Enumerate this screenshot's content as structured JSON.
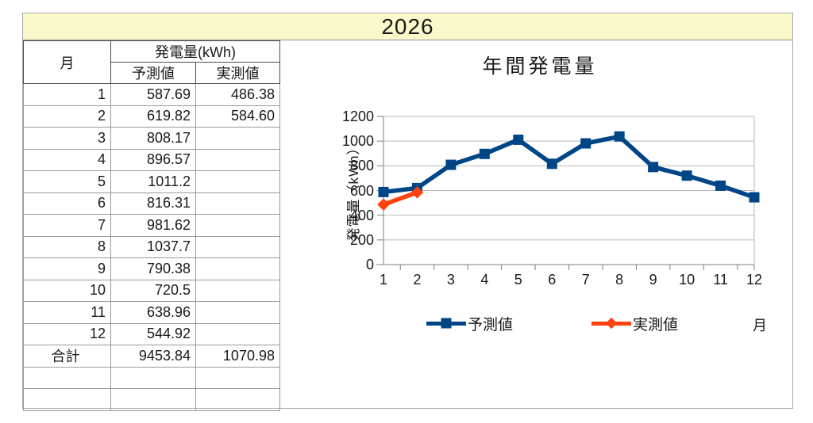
{
  "sheet": {
    "title": "2026"
  },
  "table": {
    "headers": {
      "month": "月",
      "group": "発電量(kWh)",
      "pred": "予測値",
      "actual": "実測値"
    },
    "rows": [
      {
        "month": "1",
        "pred": "587.69",
        "actual": "486.38"
      },
      {
        "month": "2",
        "pred": "619.82",
        "actual": "584.60"
      },
      {
        "month": "3",
        "pred": "808.17",
        "actual": ""
      },
      {
        "month": "4",
        "pred": "896.57",
        "actual": ""
      },
      {
        "month": "5",
        "pred": "1011.2",
        "actual": ""
      },
      {
        "month": "6",
        "pred": "816.31",
        "actual": ""
      },
      {
        "month": "7",
        "pred": "981.62",
        "actual": ""
      },
      {
        "month": "8",
        "pred": "1037.7",
        "actual": ""
      },
      {
        "month": "9",
        "pred": "790.38",
        "actual": ""
      },
      {
        "month": "10",
        "pred": "720.5",
        "actual": ""
      },
      {
        "month": "11",
        "pred": "638.96",
        "actual": ""
      },
      {
        "month": "12",
        "pred": "544.92",
        "actual": ""
      }
    ],
    "total": {
      "label": "合計",
      "pred": "9453.84",
      "actual": "1070.98"
    },
    "empty_row_count": 2
  },
  "chart_data": {
    "type": "line",
    "title": "年間発電量",
    "ylabel": "発電量（kWh）",
    "xlabel": "月",
    "x": [
      1,
      2,
      3,
      4,
      5,
      6,
      7,
      8,
      9,
      10,
      11,
      12
    ],
    "series": [
      {
        "name": "予測値",
        "color": "#004586",
        "marker": "square",
        "values": [
          587.69,
          619.82,
          808.17,
          896.57,
          1011.2,
          816.31,
          981.62,
          1037.7,
          790.38,
          720.5,
          638.96,
          544.92
        ]
      },
      {
        "name": "実測値",
        "color": "#FF420E",
        "marker": "diamond",
        "values": [
          486.38,
          584.6,
          null,
          null,
          null,
          null,
          null,
          null,
          null,
          null,
          null,
          null
        ]
      }
    ],
    "ylim": [
      0,
      1200
    ],
    "yticks": [
      0,
      200,
      400,
      600,
      800,
      1000,
      1200
    ],
    "grid": true,
    "legend_position": "bottom"
  },
  "colors": {
    "title_band_bg": "#FAF9CC",
    "grid": "#b7b7b7",
    "axis": "#7f7f7f",
    "text": "#1a1a1a"
  }
}
